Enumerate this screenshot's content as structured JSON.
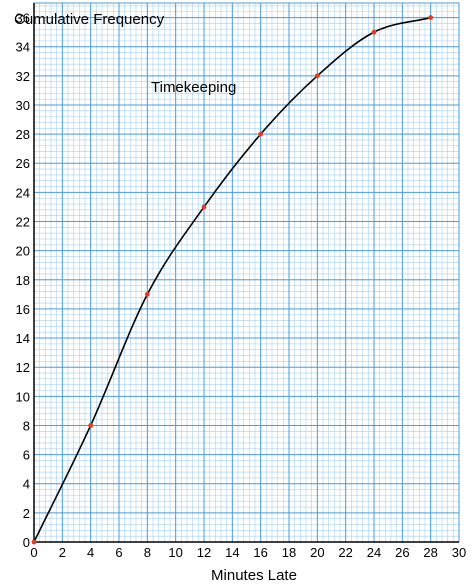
{
  "chart_data": {
    "type": "line",
    "title": "Timekeeping",
    "xlabel": "Minutes Late",
    "ylabel": "Cumulative Frequency",
    "xlim": [
      0,
      30
    ],
    "ylim": [
      0,
      37
    ],
    "x_ticks": [
      0,
      2,
      4,
      6,
      8,
      10,
      12,
      14,
      16,
      18,
      20,
      22,
      24,
      26,
      28,
      30
    ],
    "y_ticks": [
      0,
      2,
      4,
      6,
      8,
      10,
      12,
      14,
      16,
      18,
      20,
      22,
      24,
      26,
      28,
      30,
      32,
      34,
      36
    ],
    "grid": true,
    "minor_grid_step": 0.4,
    "series": [
      {
        "x": [
          0,
          4,
          8,
          12,
          16,
          20,
          24,
          28
        ],
        "y": [
          0,
          8,
          17,
          23,
          28,
          32,
          35,
          36
        ],
        "line_color": "#000000",
        "marker_color": "#e83a1e"
      }
    ],
    "colors": {
      "major_grid": "#4d9dd6",
      "minor_grid": "#a9d0ee",
      "axis": "#000000"
    }
  }
}
